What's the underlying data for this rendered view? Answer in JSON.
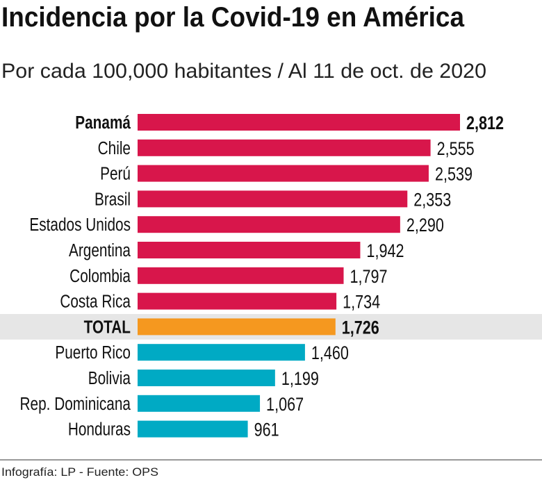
{
  "title": "Incidencia por la Covid-19 en América",
  "subtitle": "Por cada 100,000 habitantes / Al 11 de oct. de 2020",
  "footer": "Infografía: LP - Fuente: OPS",
  "colors": {
    "above": "#d8164b",
    "total": "#f5981f",
    "below": "#00aac4",
    "total_band": "#e6e6e6"
  },
  "chart_data": {
    "type": "bar",
    "orientation": "horizontal",
    "title": "Incidencia por la Covid-19 en América",
    "subtitle": "Por cada 100,000 habitantes / Al 11 de oct. de 2020",
    "categories": [
      "Panamá",
      "Chile",
      "Perú",
      "Brasil",
      "Estados Unidos",
      "Argentina",
      "Colombia",
      "Costa Rica",
      "TOTAL",
      "Puerto Rico",
      "Bolivia",
      "Rep. Dominicana",
      "Honduras"
    ],
    "values": [
      2812,
      2555,
      2539,
      2353,
      2290,
      1942,
      1797,
      1734,
      1726,
      1460,
      1199,
      1067,
      961
    ],
    "value_labels": [
      "2,812",
      "2,555",
      "2,539",
      "2,353",
      "2,290",
      "1,942",
      "1,797",
      "1,734",
      "1,726",
      "1,460",
      "1,199",
      "1,067",
      "961"
    ],
    "bold": [
      "Panamá",
      "TOTAL"
    ],
    "grid": false
  }
}
